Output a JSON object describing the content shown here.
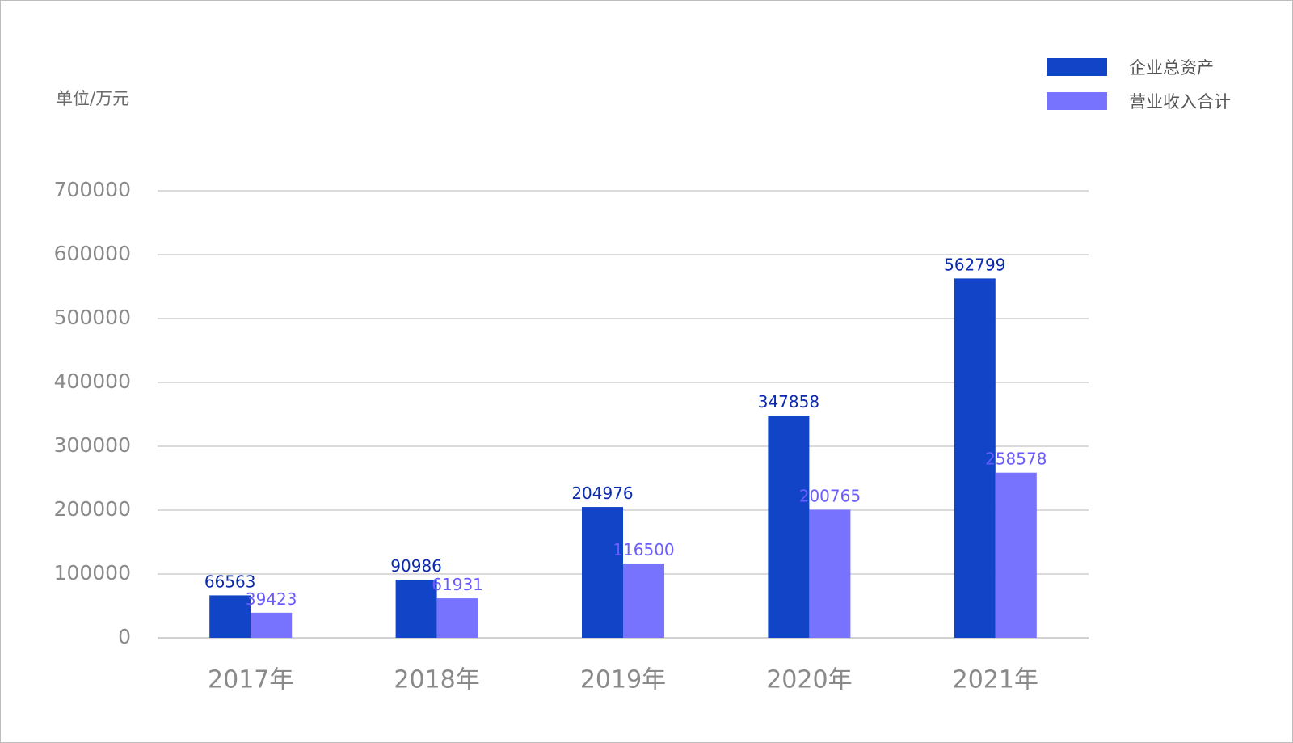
{
  "unit_label": "单位/万元",
  "colors": {
    "series_1": "#1144c6",
    "series_2": "#7773ff",
    "series_1_label": "#0a2ab0",
    "series_2_label": "#6a5cff",
    "grid": "#c4c4c4",
    "axis_text": "#8a8a8a"
  },
  "chart_data": {
    "type": "bar",
    "categories": [
      "2017年",
      "2018年",
      "2019年",
      "2020年",
      "2021年"
    ],
    "series": [
      {
        "name": "企业总资产",
        "values": [
          66563,
          90986,
          204976,
          347858,
          562799
        ],
        "labels": [
          "66563",
          "90986",
          "204976",
          "347858",
          "562799"
        ]
      },
      {
        "name": "营业收入合计",
        "values": [
          39423,
          61931,
          116500,
          200765,
          258578
        ],
        "labels": [
          "39423",
          "61931",
          "116500",
          "200765",
          "258578"
        ]
      }
    ],
    "yticks": [
      "0",
      "100000",
      "200000",
      "300000",
      "400000",
      "500000",
      "600000",
      "700000"
    ],
    "ylim": [
      0,
      700000
    ],
    "grid": true,
    "legend_position": "top-right"
  }
}
